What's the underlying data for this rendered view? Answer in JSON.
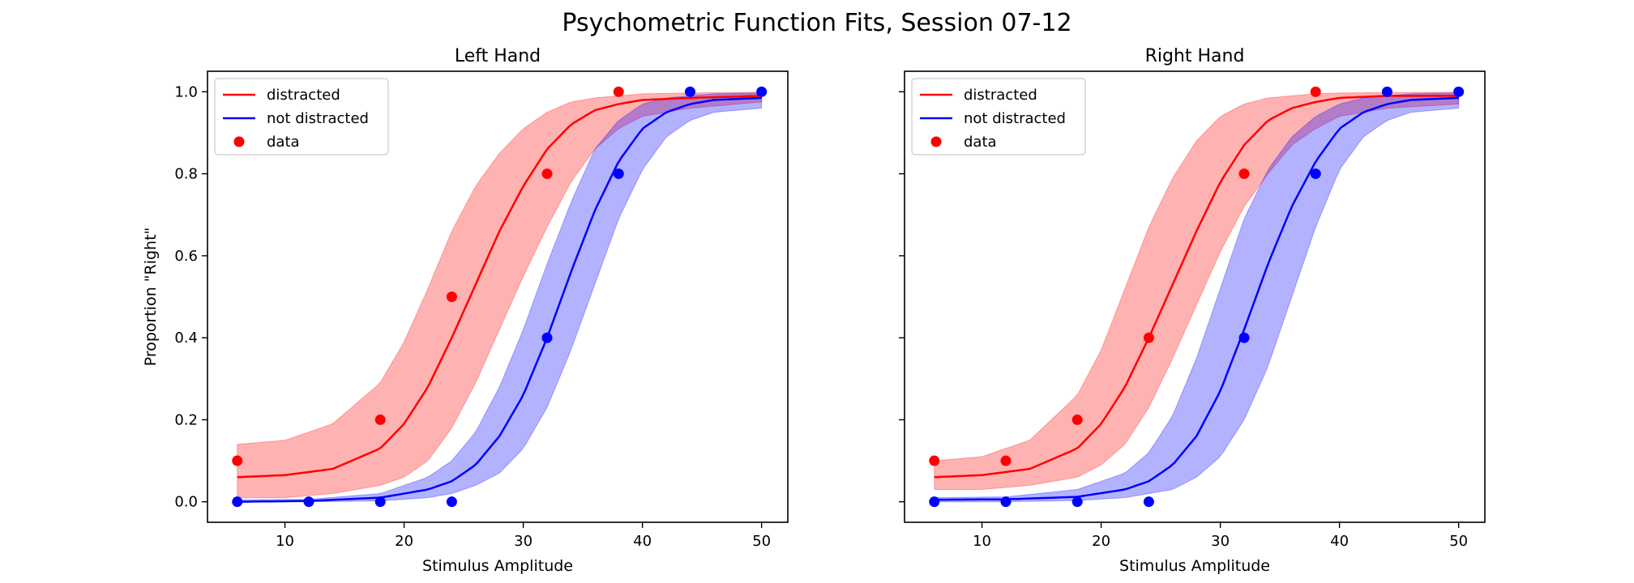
{
  "figure_title": "Psychometric Function Fits, Session 07-12",
  "colors": {
    "distracted": "#ff0000",
    "not_distracted": "#0000ff",
    "distracted_band": "#ff0000",
    "not_distracted_band": "#0000ff"
  },
  "chart_data": [
    {
      "type": "line",
      "title": "Left Hand",
      "xlabel": "Stimulus Amplitude",
      "ylabel": "Proportion \"Right\"",
      "xlim": [
        3.5,
        52.2
      ],
      "ylim": [
        -0.05,
        1.05
      ],
      "xticks": [
        10,
        20,
        30,
        40,
        50
      ],
      "xtick_labels": [
        "10",
        "20",
        "30",
        "40",
        "50"
      ],
      "yticks": [
        0.0,
        0.2,
        0.4,
        0.6,
        0.8,
        1.0
      ],
      "ytick_labels": [
        "0.0",
        "0.2",
        "0.4",
        "0.6",
        "0.8",
        "1.0"
      ],
      "legend": {
        "placement": "upper-left",
        "entries": [
          "distracted",
          "not distracted",
          "data"
        ]
      },
      "series": [
        {
          "name": "distracted",
          "color": "#ff0000",
          "fit": {
            "x": [
              6,
              10,
              14,
              18,
              20,
              22,
              24,
              26,
              28,
              30,
              32,
              34,
              36,
              38,
              40,
              44,
              50
            ],
            "y": [
              0.06,
              0.065,
              0.08,
              0.13,
              0.19,
              0.28,
              0.4,
              0.53,
              0.66,
              0.77,
              0.86,
              0.92,
              0.955,
              0.97,
              0.98,
              0.985,
              0.99
            ]
          },
          "band_upper": [
            0.14,
            0.15,
            0.19,
            0.29,
            0.39,
            0.52,
            0.66,
            0.77,
            0.85,
            0.91,
            0.95,
            0.975,
            0.985,
            0.99,
            0.995,
            0.997,
            0.999
          ],
          "band_lower": [
            0.01,
            0.01,
            0.02,
            0.04,
            0.06,
            0.1,
            0.18,
            0.29,
            0.42,
            0.55,
            0.67,
            0.78,
            0.86,
            0.91,
            0.94,
            0.96,
            0.975
          ],
          "data": {
            "x": [
              6,
              18,
              24,
              32,
              38
            ],
            "y": [
              0.1,
              0.2,
              0.5,
              0.8,
              1.0
            ]
          }
        },
        {
          "name": "not distracted",
          "color": "#0000ff",
          "fit": {
            "x": [
              6,
              12,
              18,
              22,
              24,
              26,
              28,
              30,
              32,
              34,
              36,
              38,
              40,
              42,
              44,
              46,
              50
            ],
            "y": [
              0.0,
              0.002,
              0.01,
              0.03,
              0.05,
              0.09,
              0.16,
              0.26,
              0.4,
              0.56,
              0.71,
              0.83,
              0.91,
              0.95,
              0.97,
              0.98,
              0.985
            ]
          },
          "band_upper": [
            0.005,
            0.006,
            0.02,
            0.06,
            0.1,
            0.17,
            0.28,
            0.42,
            0.58,
            0.73,
            0.86,
            0.93,
            0.97,
            0.985,
            0.99,
            0.995,
            0.997
          ],
          "band_lower": [
            0.0,
            0.0,
            0.002,
            0.01,
            0.02,
            0.04,
            0.07,
            0.13,
            0.23,
            0.37,
            0.53,
            0.69,
            0.81,
            0.89,
            0.93,
            0.95,
            0.96
          ],
          "data": {
            "x": [
              6,
              12,
              18,
              24,
              32,
              38,
              44,
              50
            ],
            "y": [
              0.0,
              0.0,
              0.0,
              0.0,
              0.4,
              0.8,
              1.0,
              1.0
            ]
          }
        }
      ]
    },
    {
      "type": "line",
      "title": "Right Hand",
      "xlabel": "Stimulus Amplitude",
      "ylabel": "",
      "xlim": [
        3.5,
        52.2
      ],
      "ylim": [
        -0.05,
        1.05
      ],
      "xticks": [
        10,
        20,
        30,
        40,
        50
      ],
      "xtick_labels": [
        "10",
        "20",
        "30",
        "40",
        "50"
      ],
      "yticks": [
        0.0,
        0.2,
        0.4,
        0.6,
        0.8,
        1.0
      ],
      "ytick_labels": [],
      "legend": {
        "placement": "upper-left",
        "entries": [
          "distracted",
          "not distracted",
          "data"
        ]
      },
      "series": [
        {
          "name": "distracted",
          "color": "#ff0000",
          "fit": {
            "x": [
              6,
              10,
              14,
              18,
              20,
              22,
              24,
              26,
              28,
              30,
              32,
              34,
              36,
              38,
              40,
              44,
              50
            ],
            "y": [
              0.06,
              0.065,
              0.08,
              0.13,
              0.19,
              0.28,
              0.4,
              0.53,
              0.66,
              0.78,
              0.87,
              0.93,
              0.96,
              0.975,
              0.985,
              0.99,
              0.99
            ]
          },
          "band_upper": [
            0.1,
            0.11,
            0.15,
            0.26,
            0.37,
            0.52,
            0.67,
            0.79,
            0.88,
            0.94,
            0.97,
            0.985,
            0.99,
            0.995,
            0.997,
            0.998,
            0.999
          ],
          "band_lower": [
            0.03,
            0.03,
            0.04,
            0.06,
            0.09,
            0.14,
            0.23,
            0.35,
            0.48,
            0.61,
            0.72,
            0.8,
            0.87,
            0.91,
            0.94,
            0.96,
            0.97
          ],
          "data": {
            "x": [
              6,
              12,
              18,
              24,
              32,
              38
            ],
            "y": [
              0.1,
              0.1,
              0.2,
              0.4,
              0.8,
              1.0
            ]
          }
        },
        {
          "name": "not distracted",
          "color": "#0000ff",
          "fit": {
            "x": [
              6,
              12,
              18,
              22,
              24,
              26,
              28,
              30,
              32,
              34,
              36,
              38,
              40,
              42,
              44,
              46,
              50
            ],
            "y": [
              0.005,
              0.006,
              0.012,
              0.03,
              0.05,
              0.09,
              0.16,
              0.27,
              0.42,
              0.58,
              0.72,
              0.83,
              0.91,
              0.95,
              0.97,
              0.98,
              0.985
            ]
          },
          "band_upper": [
            0.01,
            0.012,
            0.03,
            0.07,
            0.12,
            0.21,
            0.35,
            0.52,
            0.69,
            0.81,
            0.89,
            0.94,
            0.97,
            0.985,
            0.99,
            0.995,
            0.997
          ],
          "band_lower": [
            0.0,
            0.0,
            0.003,
            0.01,
            0.02,
            0.03,
            0.06,
            0.11,
            0.2,
            0.33,
            0.5,
            0.67,
            0.81,
            0.89,
            0.93,
            0.95,
            0.96
          ],
          "data": {
            "x": [
              6,
              12,
              18,
              24,
              32,
              38,
              44,
              50
            ],
            "y": [
              0.0,
              0.0,
              0.0,
              0.0,
              0.4,
              0.8,
              1.0,
              1.0
            ]
          }
        }
      ]
    }
  ]
}
